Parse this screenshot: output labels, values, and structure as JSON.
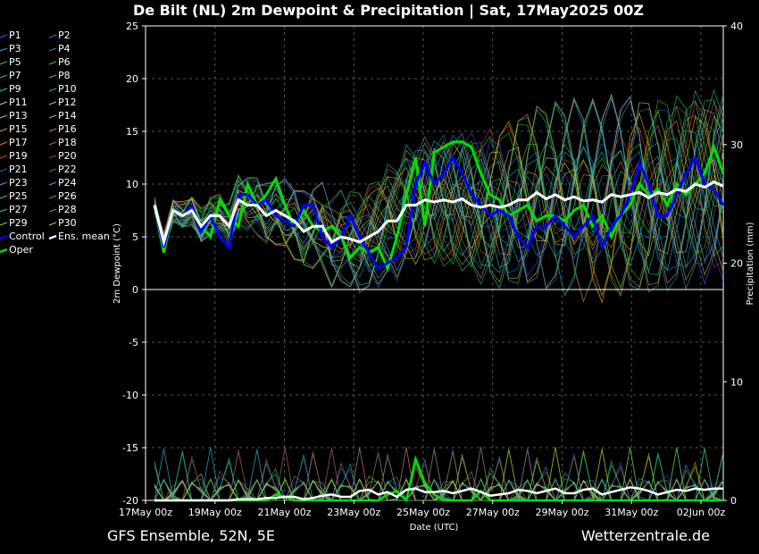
{
  "title": "De Bilt  (NL)  2m Dewpoint & Precipitation | Sat, 17May2025 00Z",
  "footer_left": "GFS Ensemble, 52N, 5E",
  "footer_right": "Wetterzentrale.de",
  "chart_data": {
    "type": "line",
    "xlabel": "Date (UTC)",
    "ylabel_left": "2m Dewpoint (°C)",
    "ylabel_right": "Precipitation (mm)",
    "ylim_left": [
      -20,
      25
    ],
    "ylim_right": [
      0,
      40
    ],
    "yticks_left": [
      25,
      20,
      15,
      10,
      5,
      0,
      -5,
      -10,
      -15,
      -20
    ],
    "yticks_right": [
      40,
      30,
      20,
      10,
      0
    ],
    "xticks": [
      "17May 00z",
      "19May 00z",
      "21May 00z",
      "23May 00z",
      "25May 00z",
      "27May 00z",
      "29May 00z",
      "31May 00z",
      "02Jun 00z"
    ],
    "grid": true,
    "legend_position": "left",
    "legend": [
      {
        "name": "P1",
        "color": "#3050ff"
      },
      {
        "name": "P2",
        "color": "#2070ff"
      },
      {
        "name": "P3",
        "color": "#30a0d0"
      },
      {
        "name": "P4",
        "color": "#2090c0"
      },
      {
        "name": "P5",
        "color": "#20b0c0"
      },
      {
        "name": "P6",
        "color": "#20c0a0"
      },
      {
        "name": "P7",
        "color": "#20c080"
      },
      {
        "name": "P8",
        "color": "#30c060"
      },
      {
        "name": "P9",
        "color": "#20d060"
      },
      {
        "name": "P10",
        "color": "#20d020"
      },
      {
        "name": "P11",
        "color": "#c0d060"
      },
      {
        "name": "P12",
        "color": "#d0c040"
      },
      {
        "name": "P13",
        "color": "#d0b030"
      },
      {
        "name": "P14",
        "color": "#d0a040"
      },
      {
        "name": "P15",
        "color": "#d09060"
      },
      {
        "name": "P16",
        "color": "#c08050"
      },
      {
        "name": "P17",
        "color": "#e08030"
      },
      {
        "name": "P18",
        "color": "#d06030"
      },
      {
        "name": "P19",
        "color": "#e04020"
      },
      {
        "name": "P20",
        "color": "#c03020"
      },
      {
        "name": "P21",
        "color": "#3060c0"
      },
      {
        "name": "P22",
        "color": "#2080d0"
      },
      {
        "name": "P23",
        "color": "#40a0e0"
      },
      {
        "name": "P24",
        "color": "#30b0d0"
      },
      {
        "name": "P25",
        "color": "#20c0b0"
      },
      {
        "name": "P26",
        "color": "#20b090"
      },
      {
        "name": "P27",
        "color": "#20d070"
      },
      {
        "name": "P28",
        "color": "#30b050"
      },
      {
        "name": "P29",
        "color": "#80d020"
      },
      {
        "name": "P30",
        "color": "#d0c020"
      },
      {
        "name": "Control",
        "color": "#0000ff"
      },
      {
        "name": "Ens. mean",
        "color": "#ffffff"
      },
      {
        "name": "Oper",
        "color": "#00e000"
      }
    ],
    "series": [
      {
        "name": "Oper",
        "values": [
          8,
          3.5,
          7.5,
          7,
          8,
          6,
          5,
          8.5,
          7,
          6,
          10,
          8,
          9,
          10.5,
          8,
          6,
          7.5,
          6,
          5.5,
          6,
          5,
          3,
          4,
          3.5,
          4,
          2,
          5,
          9,
          12.5,
          6,
          13,
          13.5,
          14,
          14,
          13.5,
          11,
          9,
          8.5,
          7,
          7.5,
          8,
          6.5,
          7,
          7,
          6.5,
          7.5,
          8,
          6,
          7,
          5,
          7,
          8,
          10,
          9,
          9.5,
          8,
          10,
          9,
          10,
          11,
          13.5,
          11
        ]
      },
      {
        "name": "Control",
        "values": [
          8,
          4,
          7.5,
          7,
          8,
          5.5,
          7,
          5,
          4,
          9,
          9,
          8,
          8.5,
          7,
          6.5,
          6,
          8,
          8,
          5,
          4,
          5,
          7,
          5,
          3.5,
          2,
          2.5,
          3,
          4,
          10,
          12,
          10,
          11,
          12.5,
          11,
          9,
          8,
          7,
          7.5,
          7,
          5,
          4,
          6,
          6,
          7,
          6,
          5,
          6,
          7,
          4,
          6,
          7,
          9,
          12,
          10,
          7,
          7,
          9,
          11,
          12.5,
          10,
          9.5,
          8
        ]
      },
      {
        "name": "Ens. mean",
        "values": [
          8,
          4.5,
          7.5,
          7,
          7.5,
          6,
          7,
          7,
          6,
          8.5,
          8,
          8,
          7,
          7.5,
          7,
          6.5,
          5.5,
          6,
          6,
          4.5,
          5,
          4.8,
          4.5,
          5,
          5.5,
          6.5,
          6.5,
          8,
          8,
          8.5,
          8.3,
          8.5,
          8.3,
          8.6,
          8,
          7.8,
          8,
          7.8,
          8,
          8.5,
          8.5,
          9.2,
          8.6,
          9,
          8.5,
          8.8,
          8.4,
          8.5,
          8.3,
          9,
          8.8,
          9,
          9.2,
          8.7,
          9.2,
          9,
          9.5,
          9.3,
          10,
          9.7,
          10.2,
          9.8
        ]
      }
    ],
    "precipitation": [
      {
        "name": "Oper",
        "values": [
          0,
          0,
          0,
          0,
          0,
          0,
          0,
          0,
          0,
          0,
          0,
          0,
          0,
          0.5,
          0.3,
          0,
          0,
          0,
          0,
          0,
          0,
          0,
          0,
          0,
          0,
          0.5,
          0.8,
          0,
          3.5,
          1.5,
          0.5,
          0,
          0,
          0,
          0,
          0.8,
          0,
          0,
          0,
          0,
          0,
          0,
          0,
          0,
          0,
          0,
          0,
          0,
          0,
          0,
          0,
          0,
          0,
          0,
          0,
          0,
          0,
          0,
          0,
          0,
          0,
          0
        ]
      },
      {
        "name": "Ens. mean",
        "values": [
          0,
          0,
          0,
          0,
          0,
          0,
          0,
          0,
          0,
          0.1,
          0.1,
          0.1,
          0.2,
          0.2,
          0.3,
          0.3,
          0.1,
          0.2,
          0.4,
          0.5,
          0.3,
          0.3,
          0.8,
          0.9,
          0.5,
          0.7,
          0.3,
          0.9,
          1.0,
          0.7,
          0.7,
          0.8,
          0.6,
          0.8,
          1.0,
          0.7,
          0.4,
          0.5,
          0.6,
          0.9,
          0.8,
          0.6,
          0.8,
          1.0,
          0.6,
          0.6,
          0.9,
          1.0,
          0.5,
          0.7,
          0.9,
          1.1,
          1.0,
          0.8,
          0.5,
          0.7,
          0.9,
          0.8,
          1.0,
          0.9,
          1.0,
          1.0
        ]
      }
    ]
  }
}
